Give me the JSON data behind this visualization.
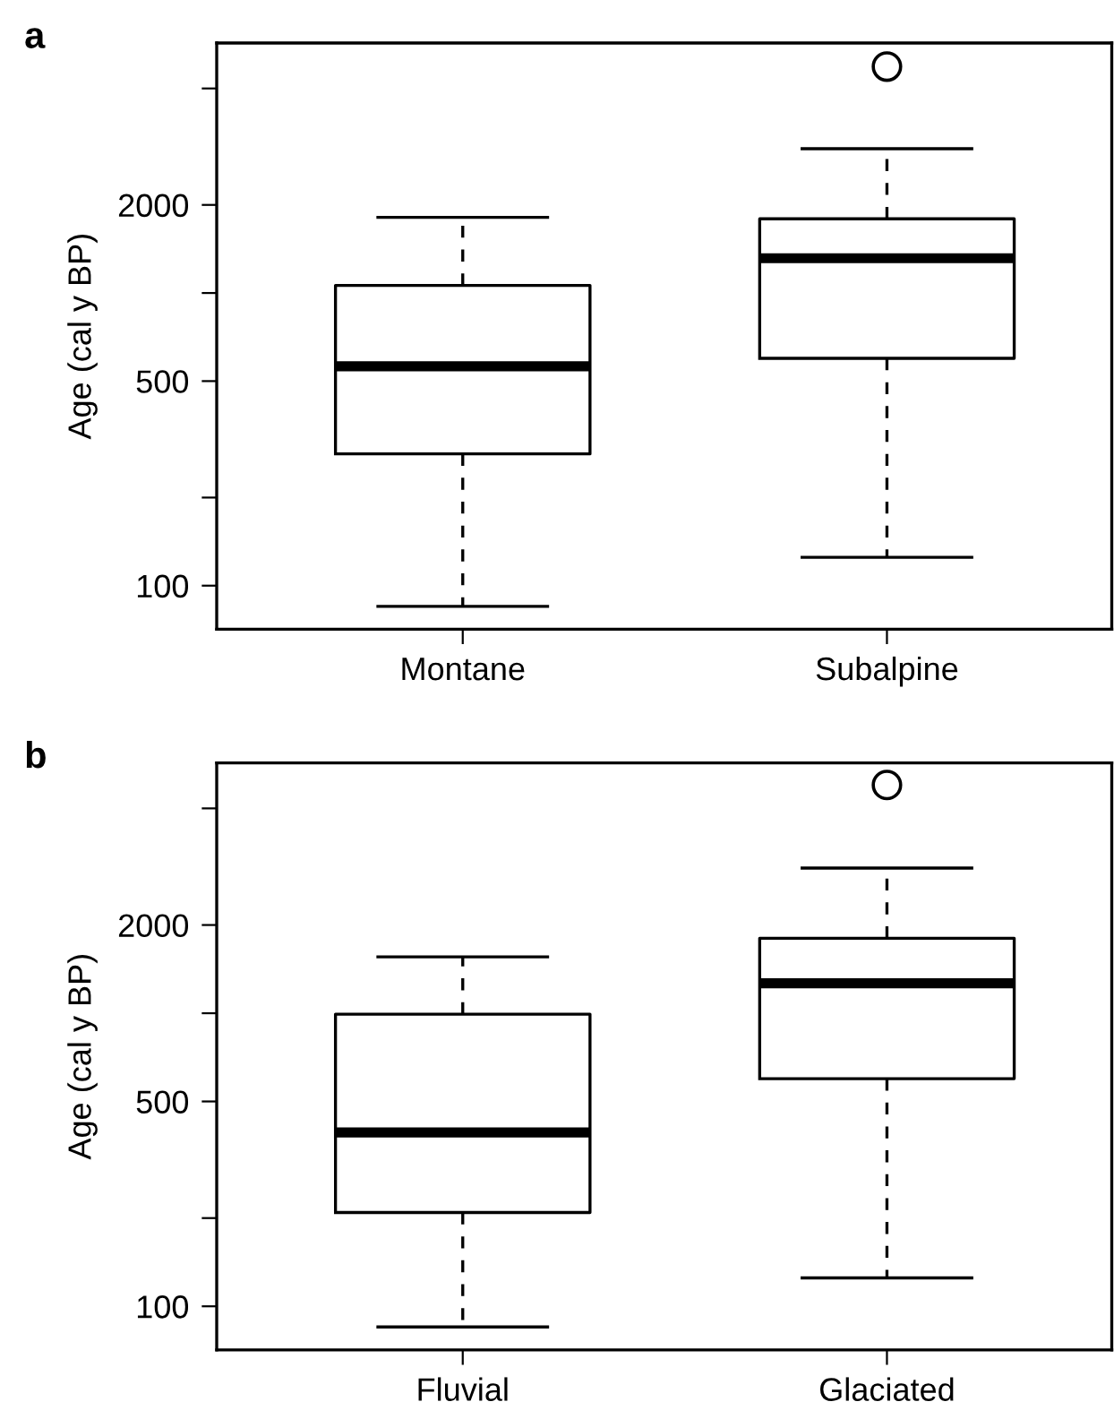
{
  "chart_data": [
    {
      "type": "box",
      "title": "a",
      "ylabel": "Age (cal y BP)",
      "categories": [
        "Montane",
        "Subalpine"
      ],
      "log": true,
      "ylim": [
        71,
        7150
      ],
      "yticks": [
        100,
        {
          "value": 200,
          "label": null
        },
        500,
        {
          "value": 1000,
          "label": null
        },
        2000,
        {
          "value": 5000,
          "label": null
        }
      ],
      "boxes": [
        {
          "low": 85,
          "q1": 282,
          "median": 562,
          "q3": 1062,
          "high": 1813
        },
        {
          "low": 125,
          "q1": 598,
          "median": 1315,
          "q3": 1793,
          "high": 3112,
          "outliers": [
            5940
          ]
        }
      ]
    },
    {
      "type": "box",
      "title": "b",
      "ylabel": "Age (cal y BP)",
      "categories": [
        "Fluvial",
        "Glaciated"
      ],
      "log": true,
      "ylim": [
        71,
        7150
      ],
      "yticks": [
        100,
        {
          "value": 200,
          "label": null
        },
        500,
        {
          "value": 1000,
          "label": null
        },
        2000,
        {
          "value": 5000,
          "label": null
        }
      ],
      "boxes": [
        {
          "low": 85,
          "q1": 209,
          "median": 392,
          "q3": 993,
          "high": 1557
        },
        {
          "low": 125,
          "q1": 598,
          "median": 1265,
          "q3": 1803,
          "high": 3129,
          "outliers": [
            6010
          ]
        }
      ]
    }
  ]
}
